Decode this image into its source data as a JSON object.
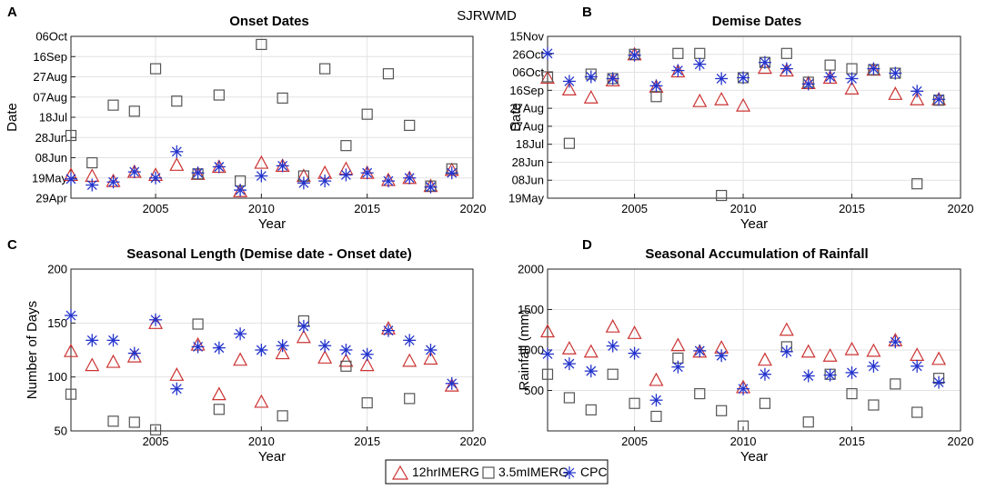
{
  "figure_title": "SJRWMD",
  "legend": {
    "entries": [
      {
        "name": "12hrIMERG",
        "marker": "triangle",
        "color": "#cc3333"
      },
      {
        "name": "3.5mIMERG",
        "marker": "square",
        "color": "#555555"
      },
      {
        "name": "CPC",
        "marker": "asterisk",
        "color": "#2233cc"
      }
    ]
  },
  "chart_data": [
    {
      "panel_label": "A",
      "type": "scatter",
      "title": "Onset Dates",
      "xlabel": "Year",
      "ylabel": "Date",
      "xlim": [
        2001,
        2020
      ],
      "xticks": [
        2005,
        2010,
        2015,
        2020
      ],
      "ylim": [
        0,
        160
      ],
      "yticks": [
        0,
        20,
        40,
        60,
        80,
        100,
        120,
        140,
        160
      ],
      "yticklabels": [
        "29Apr",
        "19May",
        "08Jun",
        "28Jun",
        "18Jul",
        "07Aug",
        "27Aug",
        "16Sep",
        "06Oct"
      ],
      "x": [
        2001,
        2002,
        2003,
        2004,
        2005,
        2006,
        2007,
        2008,
        2009,
        2010,
        2011,
        2012,
        2013,
        2014,
        2015,
        2016,
        2017,
        2018,
        2019
      ],
      "series": [
        {
          "name": "12hrIMERG",
          "values": [
            23,
            22,
            17,
            26,
            23,
            33,
            24,
            31,
            7,
            35,
            32,
            22,
            25,
            29,
            25,
            18,
            20,
            12,
            28
          ]
        },
        {
          "name": "3.5mIMERG",
          "values": [
            62,
            35,
            92,
            86,
            128,
            96,
            24,
            102,
            17,
            152,
            99,
            22,
            128,
            52,
            83,
            123,
            72,
            12,
            29
          ]
        },
        {
          "name": "CPC",
          "values": [
            19,
            13,
            16,
            26,
            20,
            46,
            25,
            31,
            8,
            22,
            32,
            15,
            17,
            23,
            25,
            17,
            20,
            11,
            25
          ]
        }
      ]
    },
    {
      "panel_label": "B",
      "type": "scatter",
      "title": "Demise Dates",
      "xlabel": "Year",
      "ylabel": "Date",
      "xlim": [
        2001,
        2020
      ],
      "xticks": [
        2005,
        2010,
        2015,
        2020
      ],
      "ylim": [
        0,
        180
      ],
      "yticks": [
        0,
        20,
        40,
        60,
        80,
        100,
        120,
        140,
        160,
        180
      ],
      "yticklabels": [
        "19May",
        "08Jun",
        "28Jun",
        "18Jul",
        "07Aug",
        "27Aug",
        "16Sep",
        "06Oct",
        "26Oct",
        "15Nov"
      ],
      "x": [
        2001,
        2002,
        2003,
        2004,
        2005,
        2006,
        2007,
        2008,
        2009,
        2010,
        2011,
        2012,
        2013,
        2014,
        2015,
        2016,
        2017,
        2018,
        2019
      ],
      "series": [
        {
          "name": "12hrIMERG",
          "values": [
            134,
            121,
            112,
            131,
            160,
            124,
            141,
            108,
            110,
            103,
            145,
            142,
            128,
            134,
            122,
            143,
            116,
            110,
            110
          ]
        },
        {
          "name": "3.5mIMERG",
          "values": [
            135,
            61,
            138,
            133,
            160,
            113,
            161,
            161,
            3,
            134,
            151,
            161,
            129,
            148,
            144,
            143,
            139,
            16,
            109
          ]
        },
        {
          "name": "CPC",
          "values": [
            161,
            130,
            135,
            133,
            159,
            125,
            142,
            149,
            133,
            134,
            151,
            144,
            127,
            135,
            133,
            144,
            139,
            119,
            110
          ]
        }
      ]
    },
    {
      "panel_label": "C",
      "type": "scatter",
      "title": "Seasonal Length (Demise date - Onset date)",
      "xlabel": "Year",
      "ylabel": "Number of Days",
      "xlim": [
        2001,
        2020
      ],
      "xticks": [
        2005,
        2010,
        2015,
        2020
      ],
      "ylim": [
        50,
        200
      ],
      "yticks": [
        50,
        100,
        150,
        200
      ],
      "yticklabels": [
        "50",
        "100",
        "150",
        "200"
      ],
      "x": [
        2001,
        2002,
        2003,
        2004,
        2005,
        2006,
        2007,
        2008,
        2009,
        2010,
        2011,
        2012,
        2013,
        2014,
        2015,
        2016,
        2017,
        2018,
        2019
      ],
      "series": [
        {
          "name": "12hrIMERG",
          "values": [
            124,
            111,
            114,
            119,
            150,
            102,
            130,
            84,
            116,
            77,
            122,
            137,
            118,
            115,
            111,
            145,
            115,
            117,
            92
          ]
        },
        {
          "name": "3.5mIMERG",
          "values": [
            84,
            null,
            59,
            58,
            51,
            null,
            149,
            70,
            null,
            null,
            64,
            152,
            null,
            110,
            76,
            null,
            80,
            null,
            null
          ]
        },
        {
          "name": "CPC",
          "values": [
            157,
            134,
            134,
            122,
            153,
            89,
            128,
            127,
            140,
            125,
            129,
            147,
            129,
            125,
            121,
            143,
            134,
            125,
            94
          ]
        }
      ]
    },
    {
      "panel_label": "D",
      "type": "scatter",
      "title": "Seasonal Accumulation of Rainfall",
      "xlabel": "Year",
      "ylabel": "Rainfall (mm)",
      "xlim": [
        2001,
        2020
      ],
      "xticks": [
        2005,
        2010,
        2015,
        2020
      ],
      "ylim": [
        0,
        2000
      ],
      "yticks": [
        500,
        1000,
        1500,
        2000
      ],
      "yticklabels": [
        "500",
        "1000",
        "1500",
        "2000"
      ],
      "x": [
        2001,
        2002,
        2003,
        2004,
        2005,
        2006,
        2007,
        2008,
        2009,
        2010,
        2011,
        2012,
        2013,
        2014,
        2015,
        2016,
        2017,
        2018,
        2019
      ],
      "series": [
        {
          "name": "12hrIMERG",
          "values": [
            1230,
            1020,
            980,
            1290,
            1210,
            630,
            1060,
            980,
            1030,
            540,
            880,
            1250,
            980,
            930,
            1010,
            990,
            1120,
            940,
            890
          ]
        },
        {
          "name": "3.5mIMERG",
          "values": [
            700,
            410,
            260,
            700,
            340,
            180,
            900,
            460,
            250,
            60,
            340,
            1040,
            110,
            700,
            460,
            320,
            580,
            230,
            650
          ]
        },
        {
          "name": "CPC",
          "values": [
            950,
            830,
            740,
            1050,
            960,
            380,
            790,
            990,
            930,
            520,
            700,
            980,
            680,
            690,
            720,
            800,
            1100,
            800,
            600
          ]
        }
      ]
    }
  ]
}
